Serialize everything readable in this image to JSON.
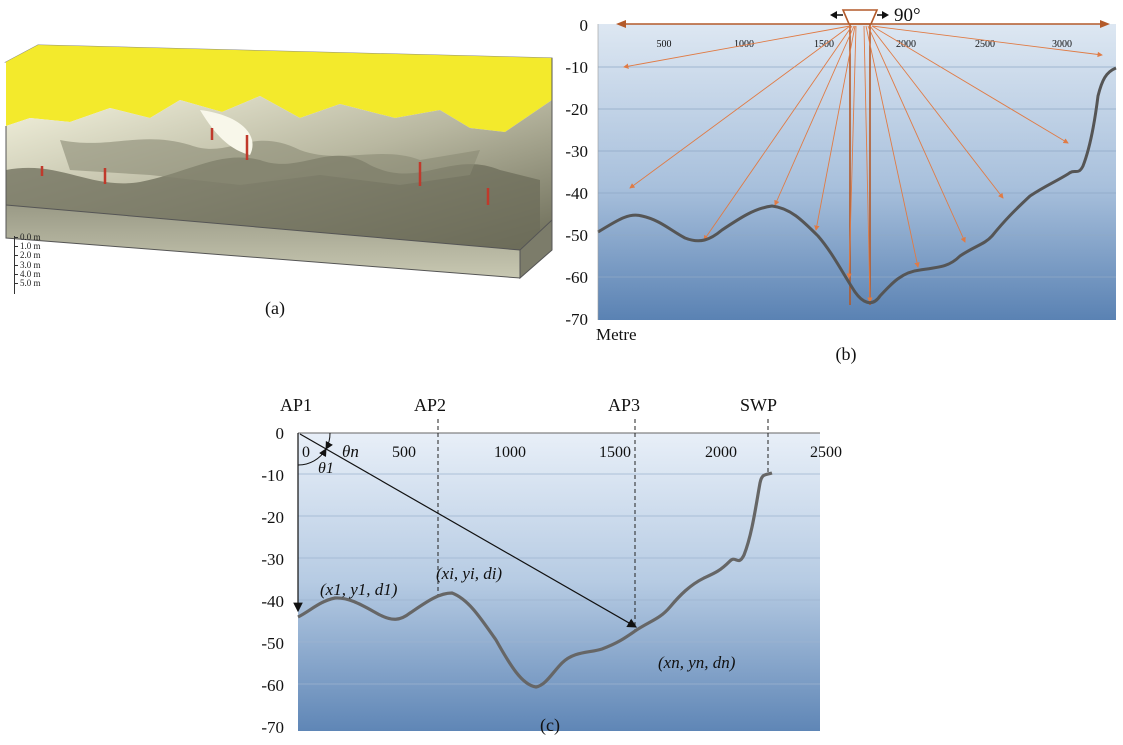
{
  "panel_a": {
    "caption": "(a)",
    "depth_scale": [
      "0.0 m",
      "1.0 m",
      "2.0 m",
      "3.0 m",
      "4.0 m",
      "5.0 m"
    ],
    "colors": {
      "land": "#f3ea2c",
      "seabed_light": "#e9e8cf",
      "seabed_dark": "#5b5b49",
      "markers": "#c0392b"
    }
  },
  "panel_b": {
    "caption": "(b)",
    "angle_label": "90°",
    "x_unit_label": "Metre",
    "x_ticks": [
      "500",
      "1000",
      "1500",
      "2000",
      "2500",
      "3000"
    ],
    "y_ticks": [
      "0",
      "-10",
      "-20",
      "-30",
      "-40",
      "-50",
      "-60",
      "-70"
    ],
    "colors": {
      "rays": "#e07b45",
      "frame": "#b35a2a",
      "profile": "#555555",
      "water_top": "#d9e4f1",
      "water_bottom": "#5b84b6"
    }
  },
  "panel_c": {
    "caption": "(c)",
    "points": [
      "AP1",
      "AP2",
      "AP3",
      "SWP"
    ],
    "x_ticks": [
      "0",
      "500",
      "1000",
      "1500",
      "2000",
      "2500"
    ],
    "y_ticks": [
      "0",
      "-10",
      "-20",
      "-30",
      "-40",
      "-50",
      "-60",
      "-70"
    ],
    "theta_n": "θn",
    "theta_1": "θ1",
    "labels": {
      "first": "(x1, y1, d1)",
      "middle": "(xi, yi, di)",
      "last": "(xn, yn, dn)"
    },
    "colors": {
      "profile": "#666666",
      "water_top": "#e6eef7",
      "water_bottom": "#5f86b6"
    }
  }
}
